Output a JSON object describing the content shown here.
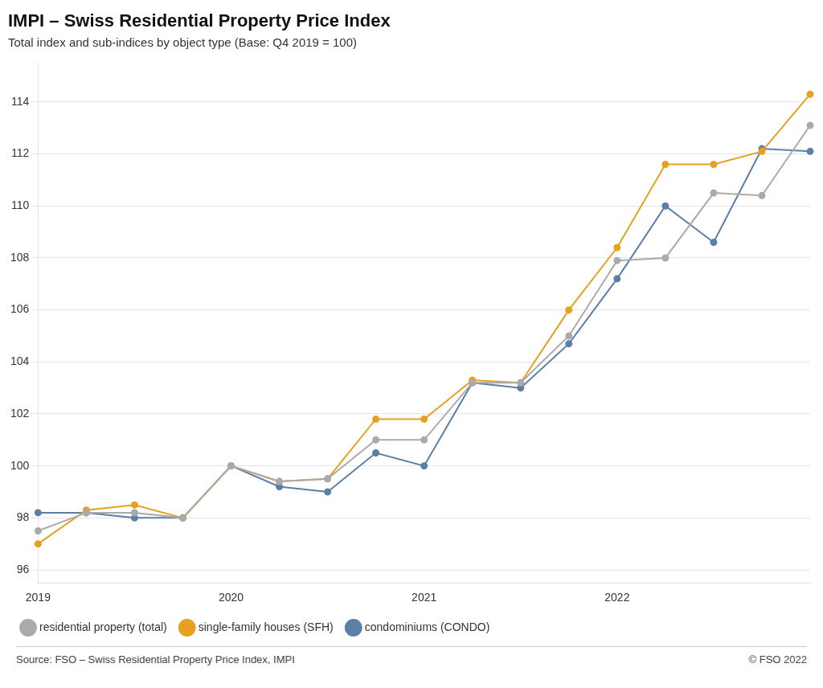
{
  "chart_data": {
    "type": "line",
    "title": "IMPI – Swiss Residential Property Price Index",
    "subtitle": "Total index and sub-indices by object type (Base: Q4 2019 = 100)",
    "annotations": [
      "Source: FSO – Swiss Residential Property Price Index, IMPI",
      "© FSO 2022"
    ],
    "categories": [
      "2019",
      null,
      null,
      null,
      "2020",
      null,
      null,
      null,
      "2021",
      null,
      null,
      null,
      "2022",
      null,
      null,
      null,
      null
    ],
    "series": [
      {
        "name": "residential property (total)",
        "color": "#aaaaaa",
        "marker": "circle",
        "values": [
          97.5,
          98.2,
          98.2,
          98.0,
          100.0,
          99.4,
          99.5,
          101.0,
          101.0,
          103.2,
          103.2,
          105.0,
          107.9,
          108.0,
          110.5,
          110.4,
          113.1
        ]
      },
      {
        "name": "single-family houses (SFH)",
        "color": "#E8A020",
        "marker": "circle",
        "values": [
          97.0,
          98.3,
          98.5,
          98.0,
          100.0,
          99.4,
          99.5,
          101.8,
          101.8,
          103.3,
          103.2,
          106.0,
          108.4,
          111.6,
          111.6,
          112.1,
          114.3
        ]
      },
      {
        "name": "condominiums (CONDO)",
        "color": "#5B7FA6",
        "marker": "circle",
        "values": [
          98.2,
          98.2,
          98.0,
          98.0,
          100.0,
          99.2,
          99.0,
          100.5,
          100.0,
          103.2,
          103.0,
          104.7,
          107.2,
          110.0,
          108.6,
          112.2,
          112.1
        ]
      }
    ],
    "ylim": [
      95.5,
      115.5
    ],
    "yticks": [
      96,
      98,
      100,
      102,
      104,
      106,
      108,
      110,
      112,
      114
    ],
    "grid": "y",
    "legend": "bottom"
  }
}
